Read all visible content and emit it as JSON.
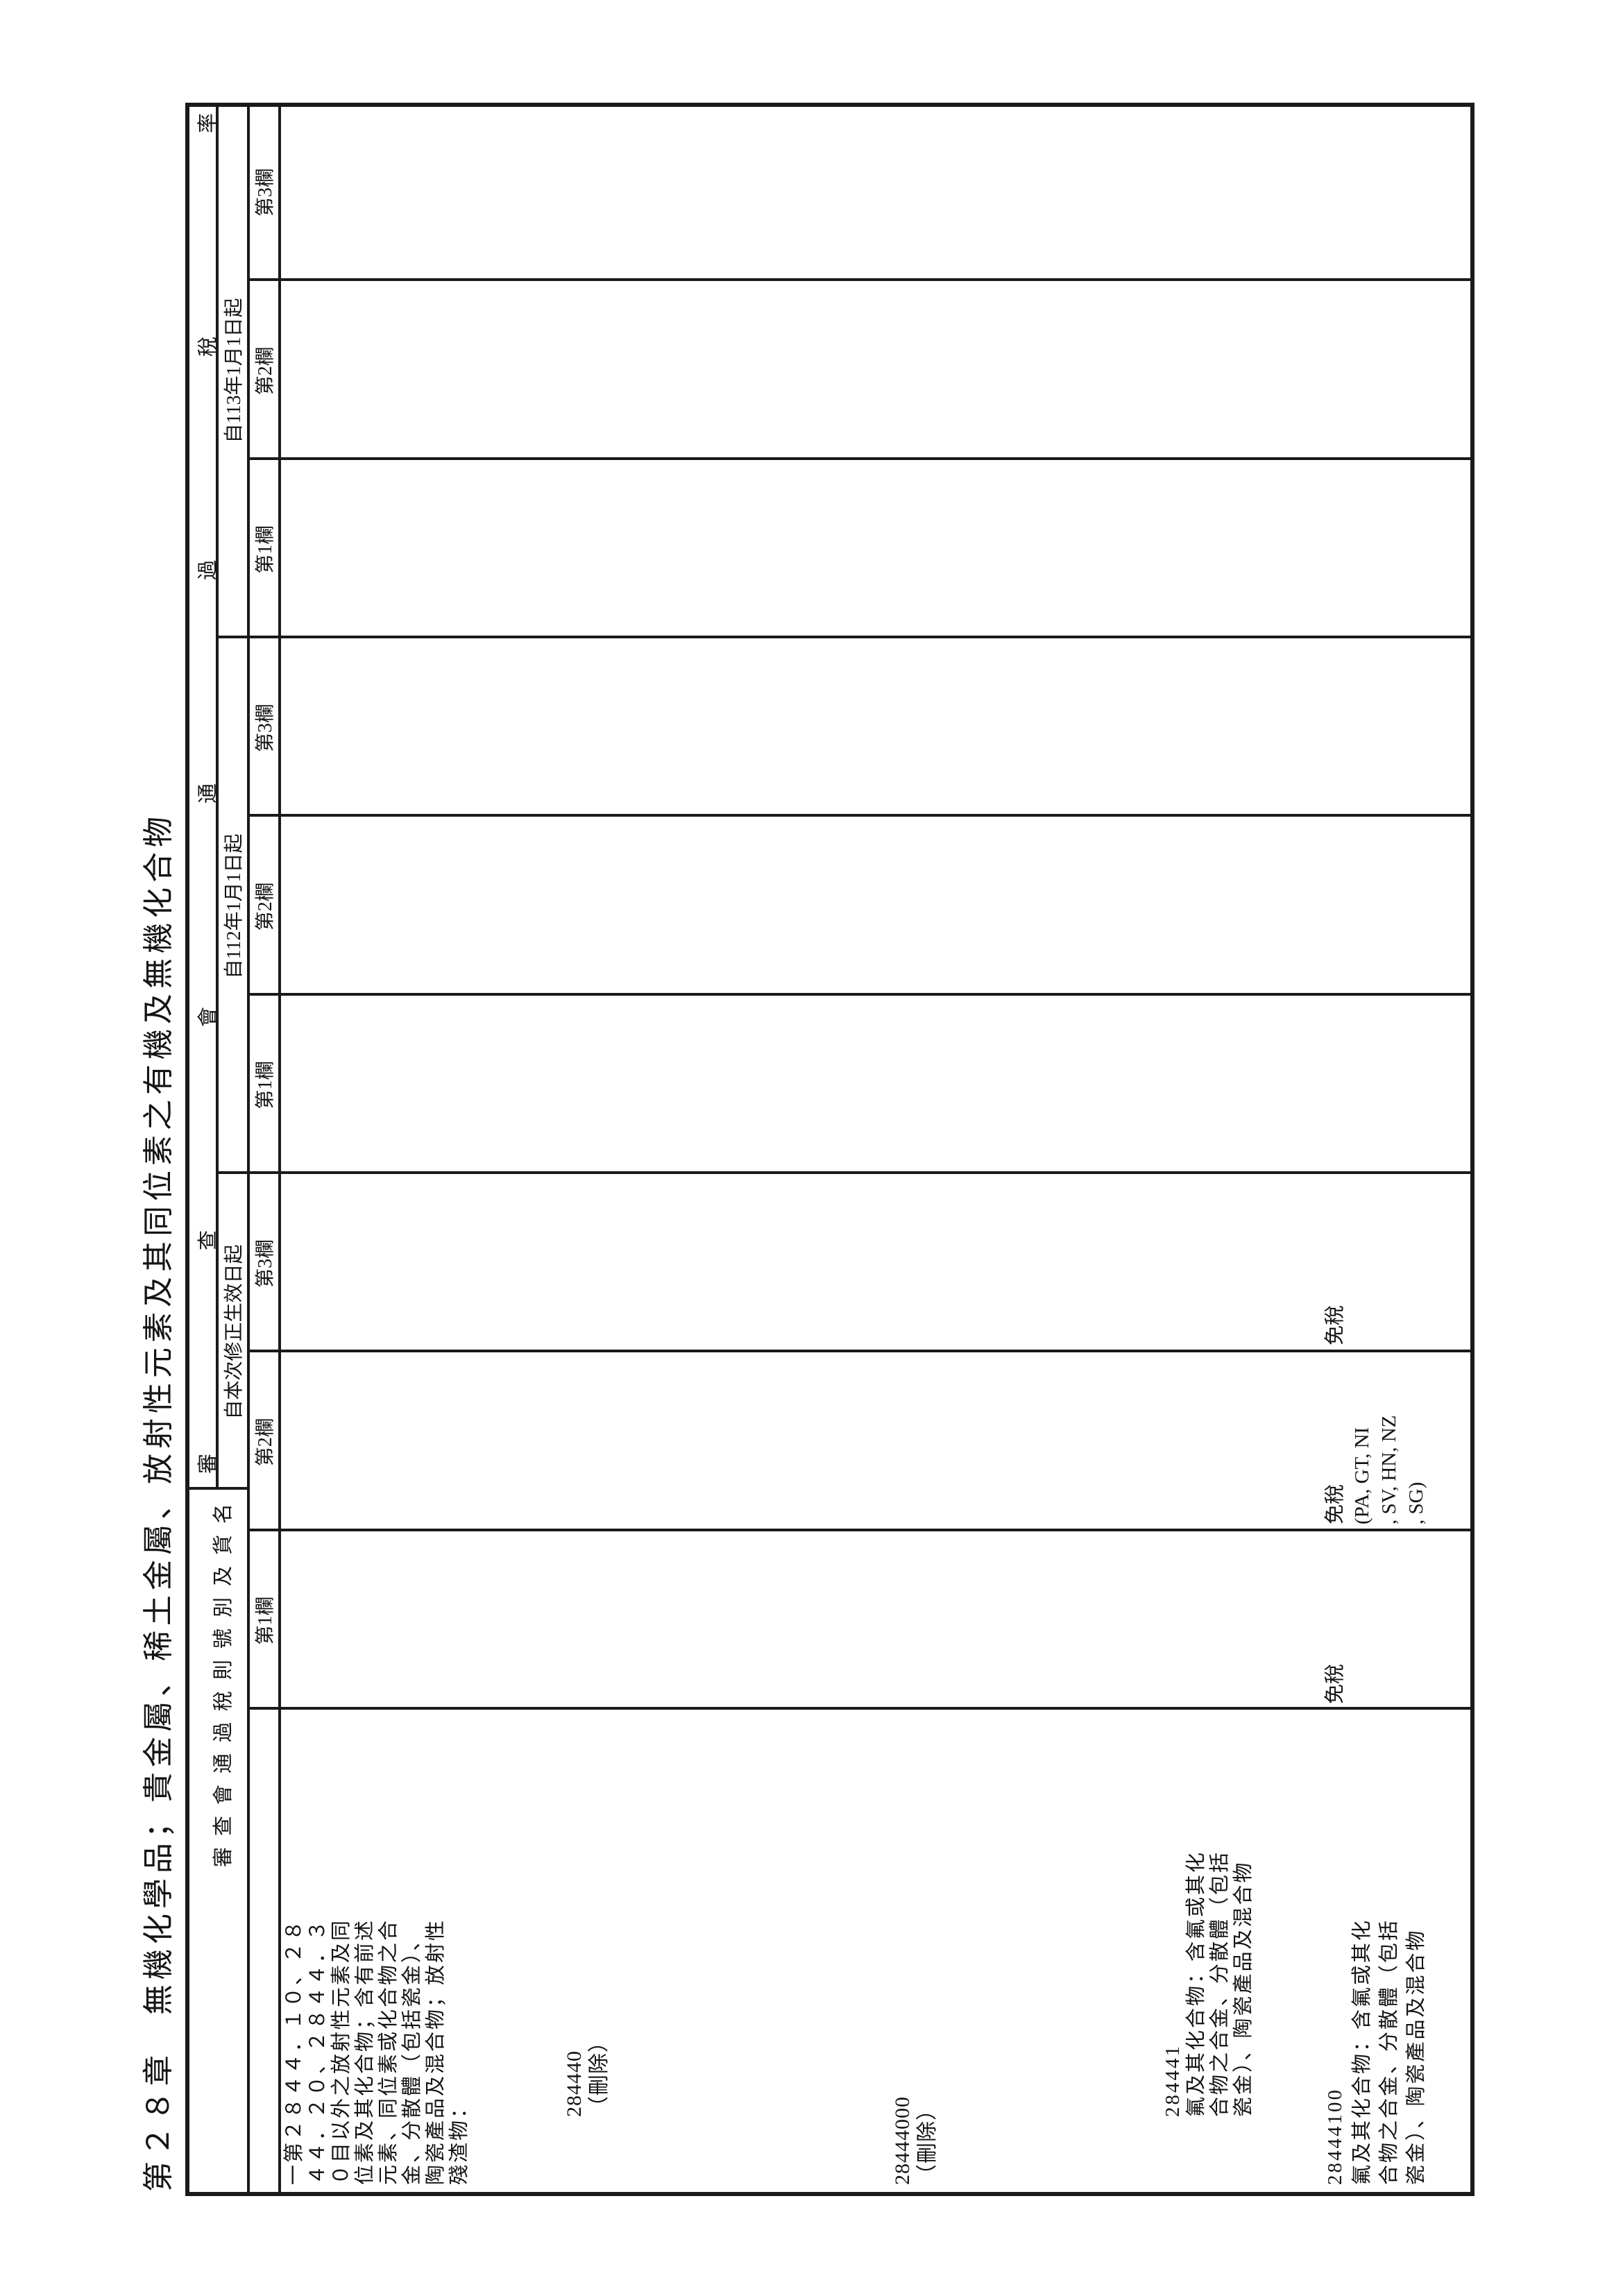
{
  "doc": {
    "chapter_title": "第２８章　無機化學品；貴金屬、稀土金屬、放射性元素及其同位素之有機及無機化合物",
    "header": {
      "rate_title": "審查會通過稅率",
      "name_title": "審查會通過稅則號別及貨名",
      "groups": [
        {
          "date": "自本次修正生效日起",
          "cols": [
            "第1欄",
            "第2欄",
            "第3欄"
          ]
        },
        {
          "date": "自112年1月1日起",
          "cols": [
            "第1欄",
            "第2欄",
            "第3欄"
          ]
        },
        {
          "date": "自113年1月1日起",
          "cols": [
            "第1欄",
            "第2欄",
            "第3欄"
          ]
        }
      ]
    },
    "body": {
      "entries": [
        {
          "kind": "description",
          "lines": [
            "一第２８４４．１０、２８",
            "４４．２０、２８４４．３",
            "０目以外之放射性元素及同",
            "位素及其化合物；含有前述",
            "元素、同位素或化合物之合",
            "金、分散體（包括瓷金）、",
            "陶瓷產品及混合物；放射性",
            "殘渣物："
          ]
        },
        {
          "kind": "subheading",
          "code": "284440",
          "note": "（刪除）",
          "lines": []
        },
        {
          "kind": "item",
          "code": "28444000",
          "note": "（刪除）",
          "lines": []
        },
        {
          "kind": "subheading",
          "code": "284441",
          "note": "",
          "lines": [
            "氟及其化合物：含氟或其化",
            "合物之合金、分散體（包括",
            "瓷金）、陶瓷產品及混合物"
          ]
        },
        {
          "kind": "item",
          "code": "28444100",
          "note": "",
          "lines": [
            "氟及其化合物：含氟或其化",
            "合物之合金、分散體（包括",
            "瓷金）、陶瓷產品及混合物"
          ]
        }
      ],
      "rates_28444100": {
        "group": "自本次修正生效日起",
        "col1": [
          "免稅"
        ],
        "col2": [
          "免稅",
          "(PA, GT, NI",
          ", SV, HN, NZ",
          ", SG)"
        ],
        "col3": [
          "免稅"
        ]
      }
    }
  }
}
